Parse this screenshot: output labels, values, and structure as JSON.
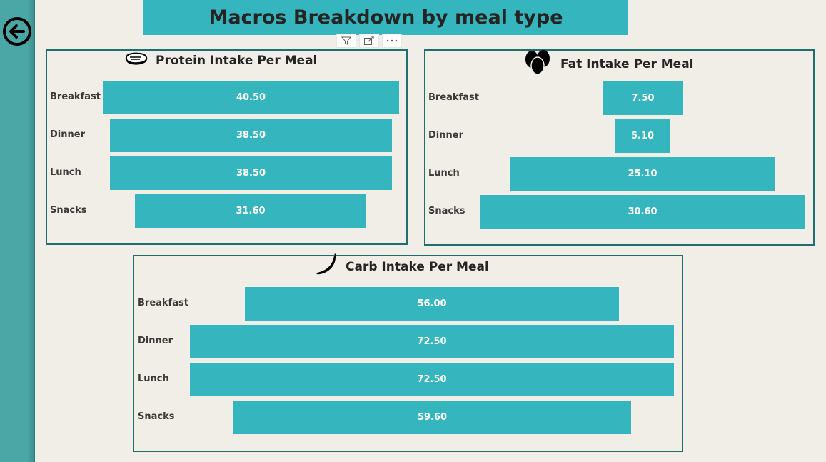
{
  "page": {
    "title": "Macros Breakdown by meal type"
  },
  "toolbar": {
    "filter_icon": "filter-icon",
    "focus_icon": "focus-mode-icon",
    "more_icon": "more-options-icon"
  },
  "colors": {
    "bar": "#35b5bd",
    "panel_border": "#1f6f6f",
    "background": "#f1eee7",
    "rail": "#4aa7a5"
  },
  "chart_data": [
    {
      "type": "bar",
      "orientation": "funnel",
      "title": "Protein Intake Per Meal",
      "icon": "steak-icon",
      "categories": [
        "Breakfast",
        "Dinner",
        "Lunch",
        "Snacks"
      ],
      "values": [
        40.5,
        38.5,
        38.5,
        31.6
      ],
      "labels": [
        "40.50",
        "38.50",
        "38.50",
        "31.60"
      ]
    },
    {
      "type": "bar",
      "orientation": "funnel",
      "title": "Fat Intake Per Meal",
      "icon": "eggs-icon",
      "categories": [
        "Breakfast",
        "Dinner",
        "Lunch",
        "Snacks"
      ],
      "values": [
        7.5,
        5.1,
        25.1,
        30.6
      ],
      "labels": [
        "7.50",
        "5.10",
        "25.10",
        "30.60"
      ]
    },
    {
      "type": "bar",
      "orientation": "funnel",
      "title": "Carb Intake Per Meal",
      "icon": "banana-icon",
      "categories": [
        "Breakfast",
        "Dinner",
        "Lunch",
        "Snacks"
      ],
      "values": [
        56.0,
        72.5,
        72.5,
        59.6
      ],
      "labels": [
        "56.00",
        "72.50",
        "72.50",
        "59.60"
      ]
    }
  ]
}
